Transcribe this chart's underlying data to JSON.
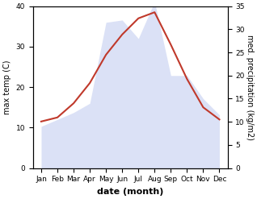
{
  "months": [
    "Jan",
    "Feb",
    "Mar",
    "Apr",
    "May",
    "Jun",
    "Jul",
    "Aug",
    "Sep",
    "Oct",
    "Nov",
    "Dec"
  ],
  "month_x": [
    1,
    2,
    3,
    4,
    5,
    6,
    7,
    8,
    9,
    10,
    11,
    12
  ],
  "temperature": [
    11.5,
    12.5,
    16.0,
    21.0,
    28.0,
    33.0,
    37.0,
    38.5,
    30.5,
    22.0,
    15.0,
    12.0
  ],
  "precipitation": [
    9.0,
    10.5,
    12.0,
    14.0,
    31.5,
    32.0,
    28.0,
    36.0,
    20.0,
    20.0,
    15.0,
    11.5
  ],
  "temp_color": "#c0392b",
  "precip_fill_color": "#b8c4ee",
  "temp_ylim": [
    0,
    40
  ],
  "precip_ylim": [
    0,
    35
  ],
  "temp_yticks": [
    0,
    10,
    20,
    30,
    40
  ],
  "precip_yticks": [
    0,
    5,
    10,
    15,
    20,
    25,
    30,
    35
  ],
  "ylabel_left": "max temp (C)",
  "ylabel_right": "med. precipitation (kg/m2)",
  "xlabel": "date (month)",
  "background_color": "#ffffff",
  "label_fontsize": 7,
  "tick_fontsize": 6.5
}
